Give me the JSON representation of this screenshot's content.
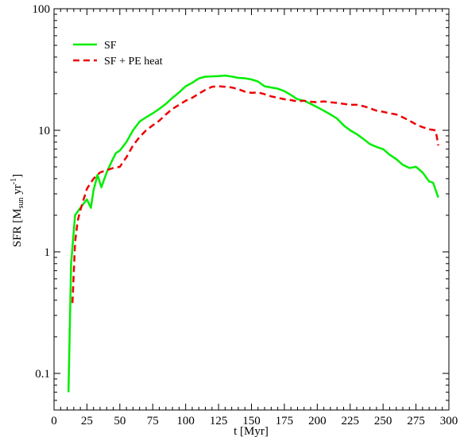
{
  "chart_data": {
    "type": "line",
    "title": "",
    "xlabel": "t [Myr]",
    "ylabel": {
      "main": "SFR [M",
      "sub": "sun",
      "mid": " yr",
      "sup": "-1",
      "end": "]"
    },
    "xlim": [
      0,
      300
    ],
    "ylim": [
      0.05,
      100
    ],
    "yscale": "log",
    "grid": false,
    "legend_position": "top-left",
    "x_ticks": [
      0,
      25,
      50,
      75,
      100,
      125,
      150,
      175,
      200,
      225,
      250,
      275,
      300
    ],
    "x_tick_labels": [
      "0",
      "25",
      "50",
      "75",
      "100",
      "125",
      "150",
      "175",
      "200",
      "225",
      "250",
      "275",
      "300"
    ],
    "y_ticks": [
      0.1,
      1,
      10,
      100
    ],
    "y_tick_labels": [
      "0.1",
      "1",
      "10",
      "100"
    ],
    "series": [
      {
        "name": "SF",
        "color": "#00ee00",
        "style": "solid",
        "points": [
          [
            11,
            0.07
          ],
          [
            13,
            0.8
          ],
          [
            16,
            2.0
          ],
          [
            20,
            2.3
          ],
          [
            25,
            2.7
          ],
          [
            28,
            2.3
          ],
          [
            30,
            3.2
          ],
          [
            33,
            4.3
          ],
          [
            36,
            3.4
          ],
          [
            40,
            4.5
          ],
          [
            44,
            5.6
          ],
          [
            47,
            6.5
          ],
          [
            50,
            6.8
          ],
          [
            55,
            8.0
          ],
          [
            60,
            10
          ],
          [
            65,
            11.8
          ],
          [
            70,
            12.8
          ],
          [
            75,
            13.8
          ],
          [
            80,
            15.0
          ],
          [
            85,
            16.5
          ],
          [
            90,
            18.5
          ],
          [
            95,
            20.5
          ],
          [
            100,
            23.0
          ],
          [
            105,
            24.6
          ],
          [
            110,
            26.7
          ],
          [
            115,
            27.6
          ],
          [
            120,
            27.8
          ],
          [
            125,
            27.9
          ],
          [
            130,
            28.2
          ],
          [
            135,
            27.7
          ],
          [
            140,
            27.0
          ],
          [
            145,
            26.8
          ],
          [
            150,
            26.2
          ],
          [
            155,
            25.2
          ],
          [
            160,
            23.0
          ],
          [
            165,
            22.5
          ],
          [
            170,
            22.0
          ],
          [
            175,
            21.0
          ],
          [
            180,
            19.5
          ],
          [
            185,
            18.0
          ],
          [
            190,
            17.5
          ],
          [
            195,
            16.5
          ],
          [
            200,
            15.5
          ],
          [
            205,
            14.5
          ],
          [
            210,
            13.5
          ],
          [
            215,
            12.5
          ],
          [
            220,
            11.0
          ],
          [
            225,
            10.0
          ],
          [
            230,
            9.3
          ],
          [
            235,
            8.5
          ],
          [
            240,
            7.7
          ],
          [
            245,
            7.3
          ],
          [
            250,
            7.0
          ],
          [
            255,
            6.3
          ],
          [
            260,
            5.8
          ],
          [
            265,
            5.2
          ],
          [
            270,
            4.9
          ],
          [
            275,
            5.0
          ],
          [
            280,
            4.5
          ],
          [
            285,
            3.8
          ],
          [
            288,
            3.7
          ],
          [
            292,
            2.8
          ]
        ]
      },
      {
        "name": "SF + PE heat",
        "color": "#ee0000",
        "style": "dashed",
        "points": [
          [
            14,
            0.38
          ],
          [
            16,
            1.2
          ],
          [
            18,
            1.8
          ],
          [
            20,
            2.2
          ],
          [
            25,
            3.3
          ],
          [
            30,
            4.0
          ],
          [
            35,
            4.5
          ],
          [
            40,
            4.7
          ],
          [
            45,
            4.9
          ],
          [
            50,
            5.0
          ],
          [
            55,
            6.0
          ],
          [
            60,
            7.5
          ],
          [
            65,
            8.8
          ],
          [
            70,
            10.0
          ],
          [
            75,
            11.0
          ],
          [
            80,
            12.0
          ],
          [
            85,
            13.5
          ],
          [
            90,
            15.0
          ],
          [
            95,
            16.2
          ],
          [
            100,
            17.5
          ],
          [
            105,
            18.5
          ],
          [
            110,
            20.0
          ],
          [
            115,
            21.5
          ],
          [
            120,
            22.8
          ],
          [
            125,
            23.0
          ],
          [
            130,
            22.8
          ],
          [
            135,
            22.5
          ],
          [
            140,
            21.8
          ],
          [
            145,
            20.8
          ],
          [
            150,
            20.3
          ],
          [
            155,
            20.5
          ],
          [
            160,
            19.8
          ],
          [
            165,
            19.0
          ],
          [
            170,
            18.5
          ],
          [
            175,
            18.0
          ],
          [
            180,
            17.7
          ],
          [
            185,
            17.3
          ],
          [
            190,
            17.5
          ],
          [
            195,
            17.2
          ],
          [
            200,
            17.0
          ],
          [
            205,
            17.3
          ],
          [
            210,
            17.0
          ],
          [
            215,
            16.8
          ],
          [
            220,
            16.5
          ],
          [
            225,
            16.2
          ],
          [
            230,
            16.2
          ],
          [
            235,
            15.8
          ],
          [
            240,
            15.2
          ],
          [
            245,
            14.5
          ],
          [
            250,
            14.2
          ],
          [
            255,
            13.8
          ],
          [
            260,
            13.5
          ],
          [
            265,
            12.8
          ],
          [
            270,
            12.0
          ],
          [
            275,
            11.2
          ],
          [
            280,
            10.6
          ],
          [
            285,
            10.2
          ],
          [
            290,
            10.0
          ],
          [
            292,
            7.5
          ]
        ]
      }
    ]
  }
}
